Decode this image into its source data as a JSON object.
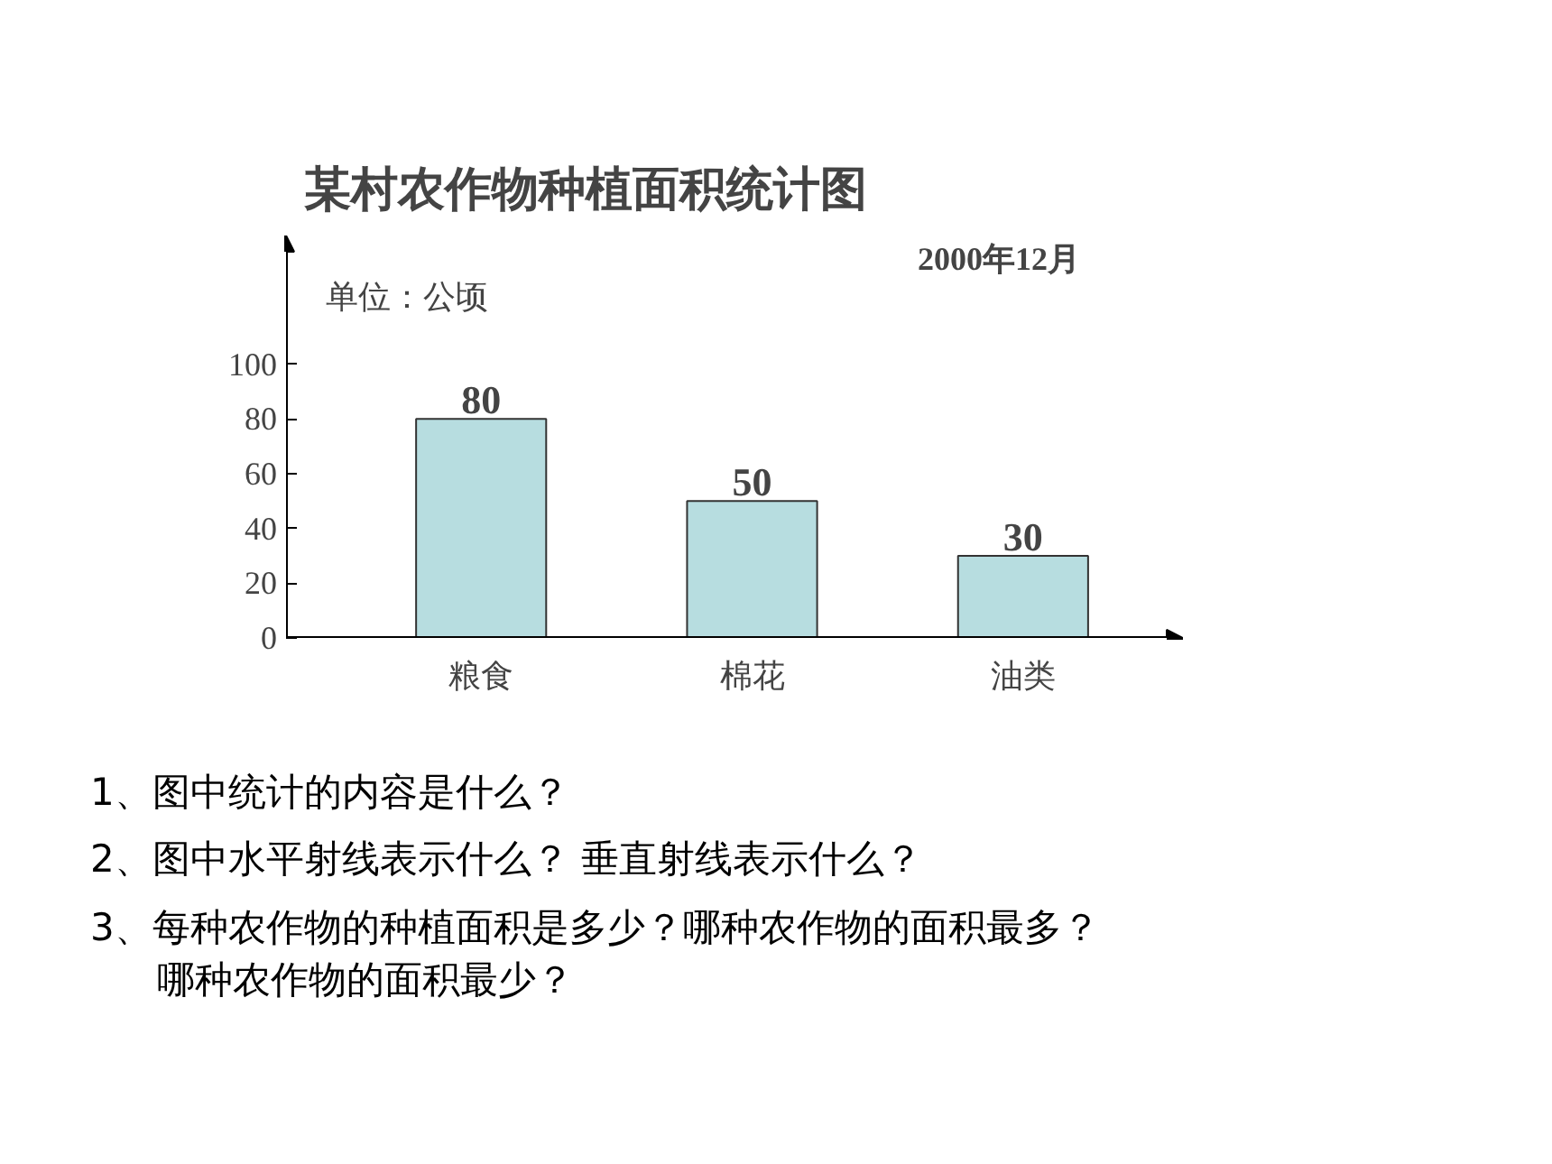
{
  "chart_data": {
    "type": "bar",
    "title": "某村农作物种植面积统计图",
    "subtitle": "2000年12月",
    "ylabel": "单位：公顷",
    "categories": [
      "粮食",
      "棉花",
      "油类"
    ],
    "values": [
      80,
      50,
      30
    ],
    "color": "#b7dde0",
    "ylim": [
      0,
      147
    ],
    "yticks": [
      0,
      20,
      40,
      60,
      80,
      100
    ],
    "grid": false,
    "data_labels": true,
    "annotations": [
      "1、图中统计的内容是什么？",
      "2、图中水平射线表示什么？ 垂直射线表示什么？",
      "3、每种农作物的种植面积是多少？哪种农作物的面积最多？哪种农作物的面积最少？"
    ]
  }
}
